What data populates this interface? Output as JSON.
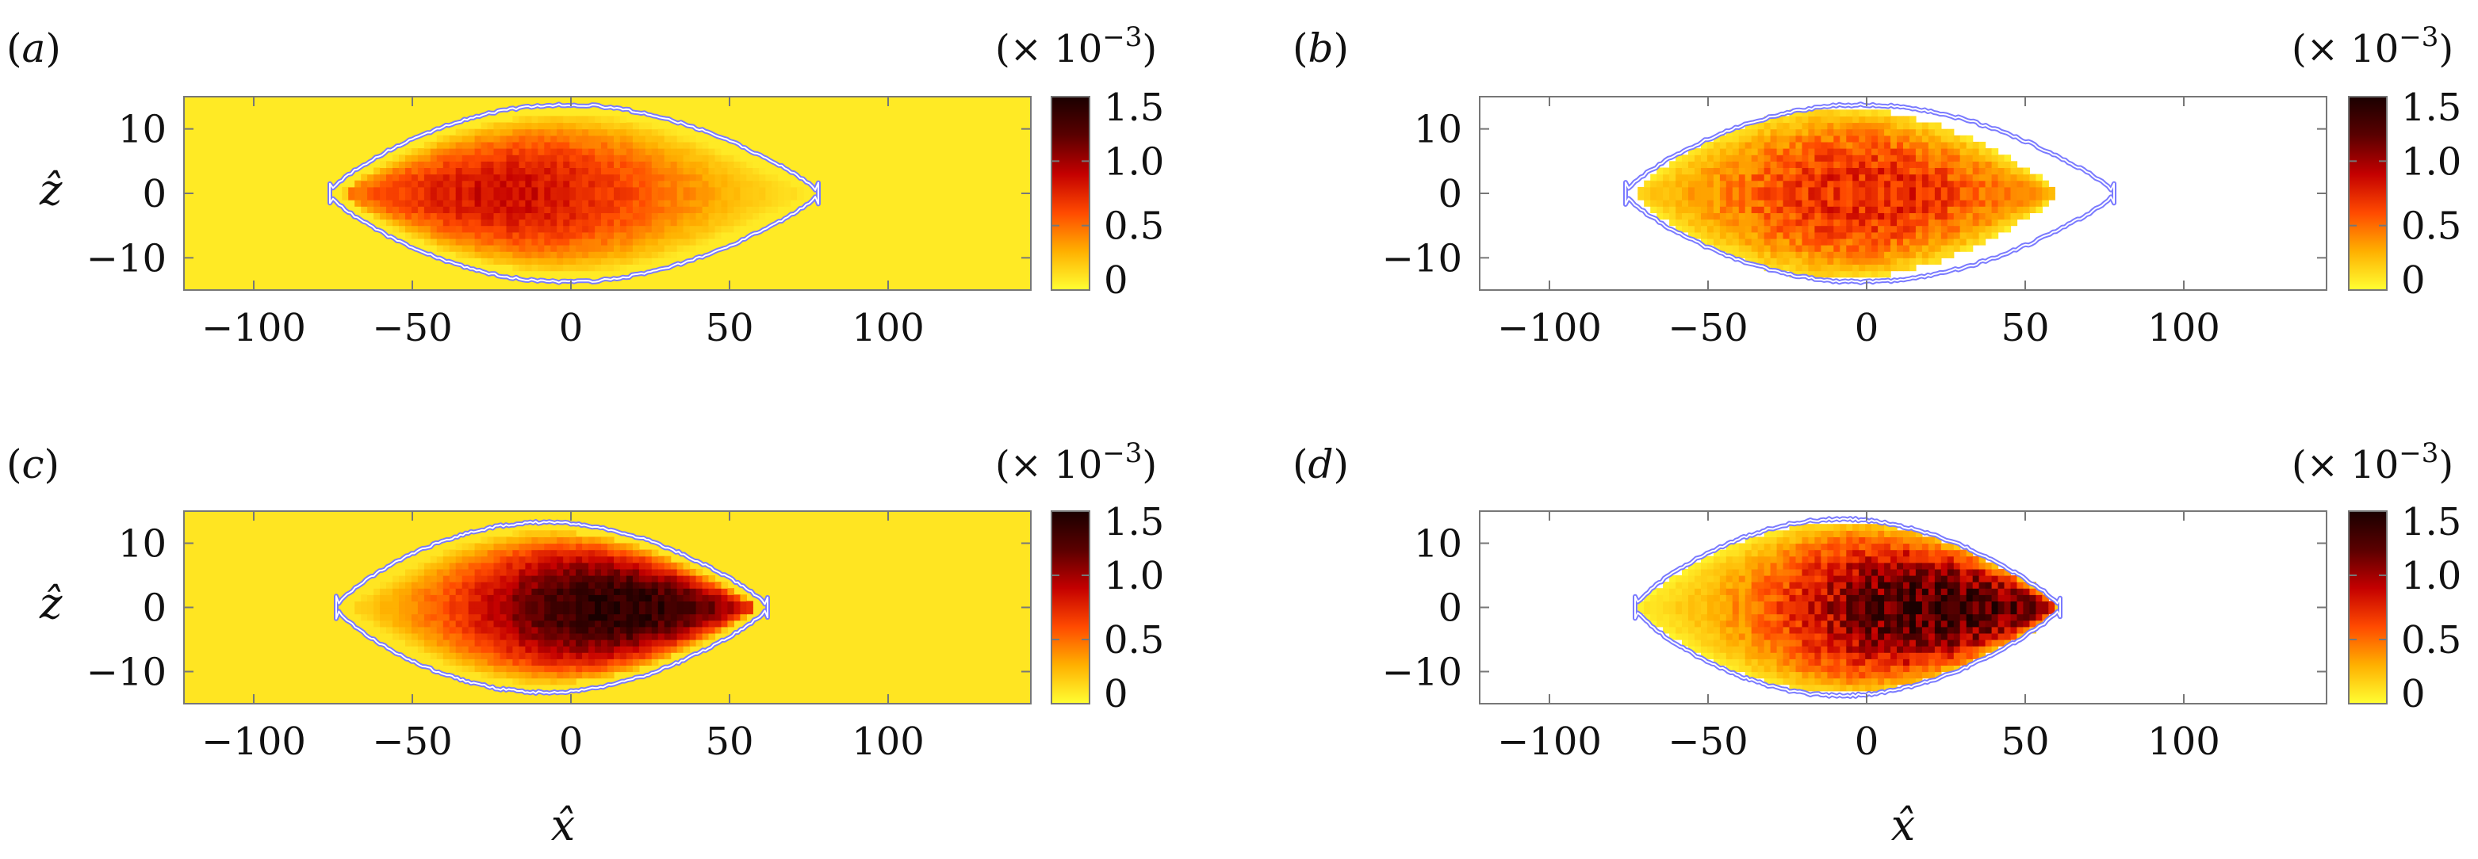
{
  "figure": {
    "xlabel": "x̂",
    "ylabel": "ẑ",
    "colorbar_multiplier": "(× 10",
    "colorbar_exponent": "−3",
    "colorbar_close": ")"
  },
  "chart_data": [
    {
      "type": "heatmap",
      "panel_label": "(a)",
      "xlabel": "",
      "ylabel": "ẑ",
      "xlim": [
        -122,
        145
      ],
      "ylim": [
        -15,
        15
      ],
      "xticks": [
        -100,
        -50,
        0,
        50,
        100
      ],
      "yticks": [
        -10,
        0,
        10
      ],
      "xtick_labels": [
        "−100",
        "−50",
        "0",
        "50",
        "100"
      ],
      "ytick_labels": [
        "−10",
        "0",
        "10"
      ],
      "color_range": [
        0,
        1.5
      ],
      "colorbar_ticks": [
        "0",
        "0.5",
        "1.0",
        "1.5"
      ],
      "colorbar_tick_values": [
        0,
        0.5,
        1.0,
        1.5
      ],
      "colormap": [
        "#ffff33",
        "#ffb000",
        "#ff4a00",
        "#c40000",
        "#5a0000",
        "#1a0000"
      ],
      "background_value": 0.08,
      "field": {
        "x_start": -72,
        "x_end": 75,
        "half_width": 12.5,
        "peak_value": 0.85,
        "peak_x": -20,
        "noise": 0.25
      },
      "contour": {
        "x_start": -76,
        "x_end": 78,
        "half_width": 14,
        "color": "#7a7aff"
      }
    },
    {
      "type": "heatmap",
      "panel_label": "(b)",
      "xlabel": "",
      "ylabel": "",
      "xlim": [
        -122,
        145
      ],
      "ylim": [
        -15,
        15
      ],
      "xticks": [
        -100,
        -50,
        0,
        50,
        100
      ],
      "yticks": [
        -10,
        0,
        10
      ],
      "xtick_labels": [
        "−100",
        "−50",
        "0",
        "50",
        "100"
      ],
      "ytick_labels": [
        "−10",
        "0",
        "10"
      ],
      "color_range": [
        0,
        1.5
      ],
      "colorbar_ticks": [
        "0",
        "0.5",
        "1.0",
        "1.5"
      ],
      "colorbar_tick_values": [
        0,
        0.5,
        1.0,
        1.5
      ],
      "colormap": [
        "#ffff33",
        "#ffb000",
        "#ff4a00",
        "#c40000",
        "#5a0000",
        "#1a0000"
      ],
      "background_value": null,
      "field": {
        "x_start": -73,
        "x_end": 60,
        "half_width": 13.5,
        "peak_value": 0.75,
        "peak_x": 0,
        "noise": 0.55
      },
      "contour": {
        "x_start": -76,
        "x_end": 78,
        "half_width": 14,
        "color": "#7a7aff"
      }
    },
    {
      "type": "heatmap",
      "panel_label": "(c)",
      "xlabel": "x̂",
      "ylabel": "ẑ",
      "xlim": [
        -122,
        145
      ],
      "ylim": [
        -15,
        15
      ],
      "xticks": [
        -100,
        -50,
        0,
        50,
        100
      ],
      "yticks": [
        -10,
        0,
        10
      ],
      "xtick_labels": [
        "−100",
        "−50",
        "0",
        "50",
        "100"
      ],
      "ytick_labels": [
        "−10",
        "0",
        "10"
      ],
      "color_range": [
        0,
        1.5
      ],
      "colorbar_ticks": [
        "0",
        "0.5",
        "1.0",
        "1.5"
      ],
      "colorbar_tick_values": [
        0,
        0.5,
        1.0,
        1.5
      ],
      "colormap": [
        "#ffff33",
        "#ffb000",
        "#ff4a00",
        "#c40000",
        "#5a0000",
        "#1a0000"
      ],
      "background_value": 0.1,
      "field": {
        "x_start": -70,
        "x_end": 58,
        "half_width": 12,
        "peak_value": 1.45,
        "peak_x": 15,
        "noise": 0.22
      },
      "contour": {
        "x_start": -74,
        "x_end": 62,
        "half_width": 13.5,
        "color": "#7a7aff"
      }
    },
    {
      "type": "heatmap",
      "panel_label": "(d)",
      "xlabel": "x̂",
      "ylabel": "",
      "xlim": [
        -122,
        145
      ],
      "ylim": [
        -15,
        15
      ],
      "xticks": [
        -100,
        -50,
        0,
        50,
        100
      ],
      "yticks": [
        -10,
        0,
        10
      ],
      "xtick_labels": [
        "−100",
        "−50",
        "0",
        "50",
        "100"
      ],
      "ytick_labels": [
        "−10",
        "0",
        "10"
      ],
      "color_range": [
        0,
        1.5
      ],
      "colorbar_ticks": [
        "0",
        "0.5",
        "1.0",
        "1.5"
      ],
      "colorbar_tick_values": [
        0,
        0.5,
        1.0,
        1.5
      ],
      "colormap": [
        "#ffff33",
        "#ffb000",
        "#ff4a00",
        "#c40000",
        "#5a0000",
        "#1a0000"
      ],
      "background_value": null,
      "field": {
        "x_start": -72,
        "x_end": 61,
        "half_width": 13.5,
        "peak_value": 1.35,
        "peak_x": 25,
        "noise": 0.5
      },
      "contour": {
        "x_start": -73,
        "x_end": 61,
        "half_width": 14,
        "color": "#7a7aff"
      }
    }
  ]
}
